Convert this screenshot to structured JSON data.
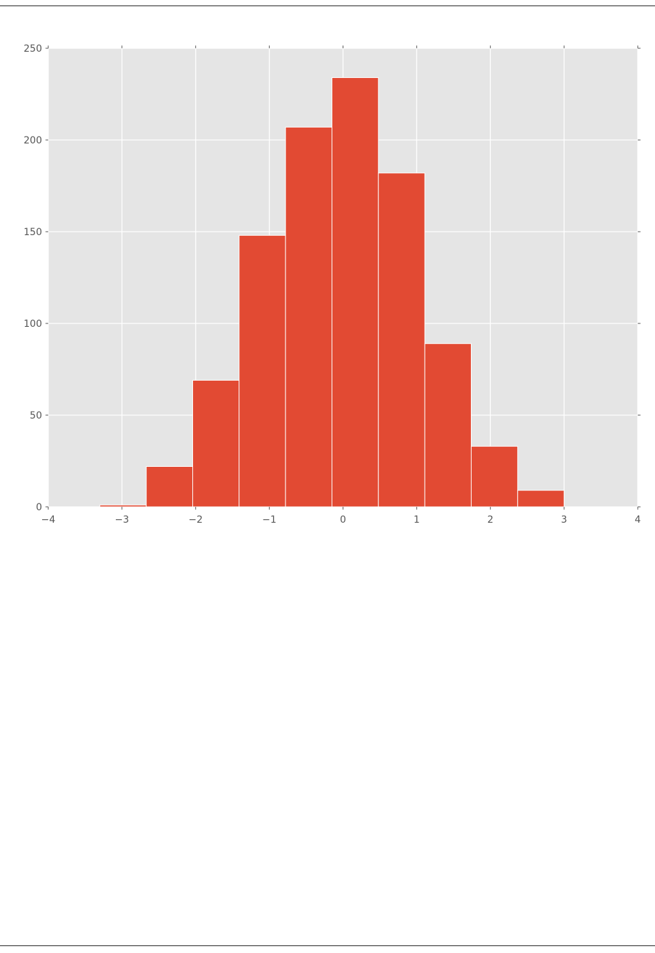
{
  "chart_data": {
    "type": "bar",
    "subtype": "histogram",
    "title": "",
    "xlabel": "",
    "ylabel": "",
    "bin_edges": [
      -3.3,
      -2.67,
      -2.04,
      -1.41,
      -0.78,
      -0.15,
      0.48,
      1.11,
      1.74,
      2.37,
      3.0
    ],
    "values": [
      1,
      22,
      69,
      148,
      207,
      234,
      182,
      89,
      33,
      9
    ],
    "xlim": [
      -4,
      4
    ],
    "ylim": [
      0,
      250
    ],
    "x_ticks": [
      -4,
      -3,
      -2,
      -1,
      0,
      1,
      2,
      3,
      4
    ],
    "x_tick_labels": [
      "−4",
      "−3",
      "−2",
      "−1",
      "0",
      "1",
      "2",
      "3",
      "4"
    ],
    "y_ticks": [
      0,
      50,
      100,
      150,
      200,
      250
    ],
    "y_tick_labels": [
      "0",
      "50",
      "100",
      "150",
      "200",
      "250"
    ],
    "grid": true,
    "legend": false,
    "style": "ggplot",
    "bar_color": "#E24A33",
    "bar_edge_color": "#FFFFFF",
    "plot_bg": "#E5E5E5",
    "grid_color": "#FFFFFF",
    "tick_color": "#555555"
  }
}
